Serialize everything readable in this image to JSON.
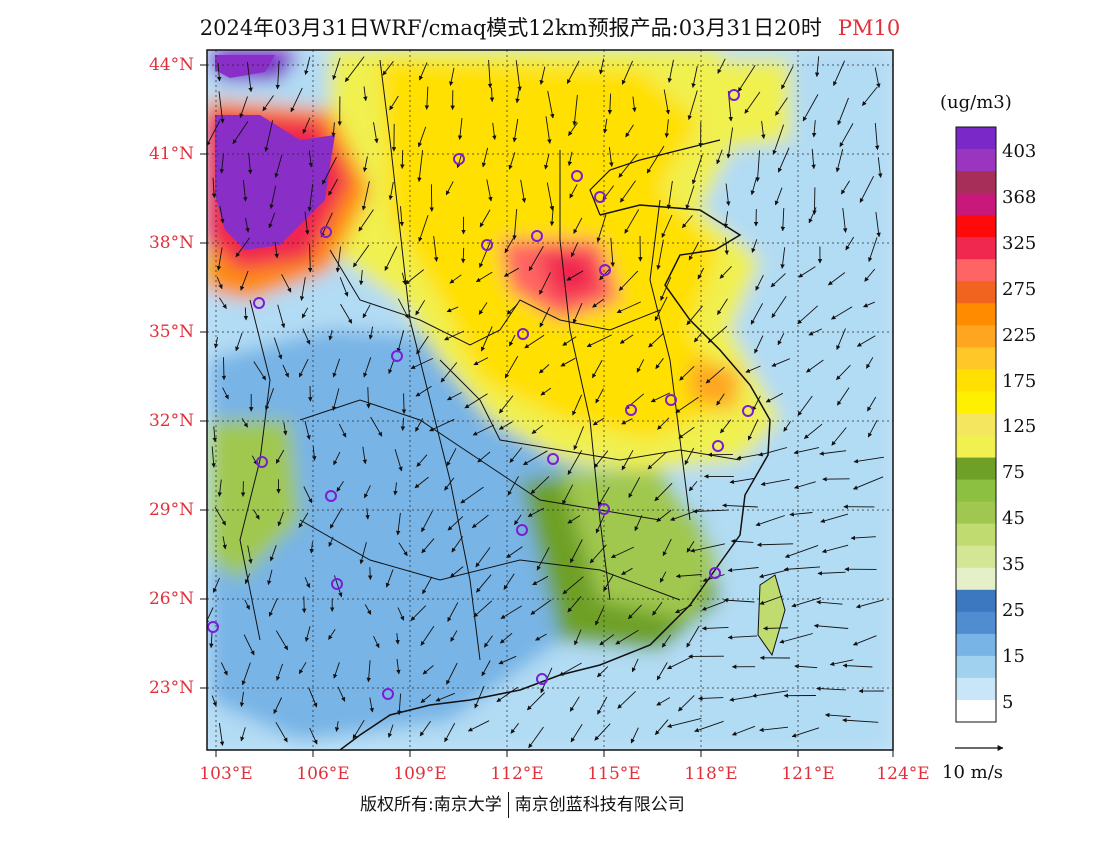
{
  "title": "2024年03月31日WRF/cmaq模式12km预报产品:03月31日20时",
  "pollutant": "PM10",
  "units": "(ug/m3)",
  "lat_labels": [
    "44°N",
    "41°N",
    "38°N",
    "35°N",
    "32°N",
    "29°N",
    "26°N",
    "23°N"
  ],
  "lon_labels": [
    "103°E",
    "106°E",
    "109°E",
    "112°E",
    "115°E",
    "118°E",
    "121°E",
    "124°E"
  ],
  "colorbar": {
    "labels": [
      "403",
      "368",
      "325",
      "275",
      "225",
      "175",
      "125",
      "75",
      "45",
      "35",
      "25",
      "15",
      "5"
    ],
    "colors_top_to_bottom": [
      "#7a28c8",
      "#9a35c0",
      "#a82e5a",
      "#c8187a",
      "#ff0a0a",
      "#f02850",
      "#ff6464",
      "#f06420",
      "#ff8c00",
      "#ffa520",
      "#ffc828",
      "#ffe000",
      "#fff000",
      "#f5e660",
      "#f0f050",
      "#6ea028",
      "#8cc040",
      "#a0c850",
      "#c0dc70",
      "#d2e696",
      "#e6f0c8",
      "#3c78c0",
      "#508cd0",
      "#78b4e6",
      "#a0d2f0",
      "#c8e6f8",
      "#ffffff"
    ]
  },
  "vector_key": "10 m/s",
  "footer_left": "版权所有:南京大学",
  "footer_right": "南京创蓝科技有限公司"
}
